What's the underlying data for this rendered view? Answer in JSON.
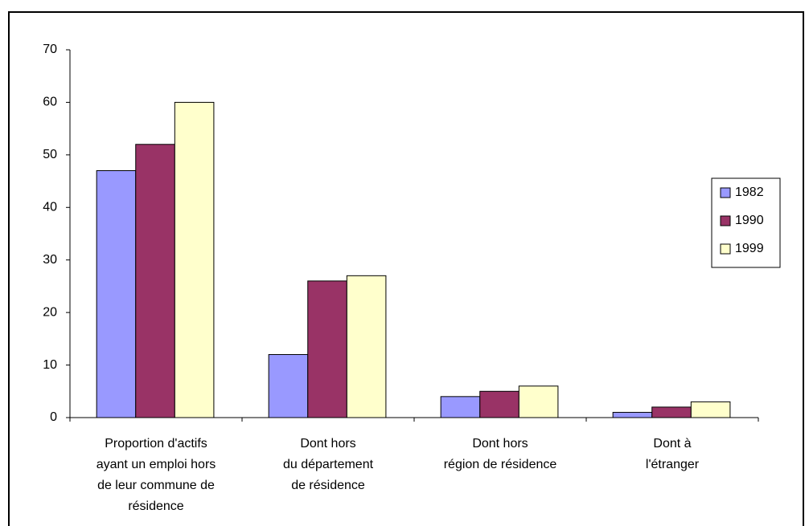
{
  "chart_data": {
    "type": "bar",
    "categories": [
      [
        "Proportion d'actifs",
        "ayant un emploi hors",
        "de leur commune de",
        "résidence"
      ],
      [
        "Dont hors",
        "du département",
        "de résidence"
      ],
      [
        "Dont hors",
        "région de résidence"
      ],
      [
        "Dont à",
        "l'étranger"
      ]
    ],
    "series": [
      {
        "name": "1982",
        "color": "#9999ff",
        "values": [
          47,
          12,
          4,
          1
        ]
      },
      {
        "name": "1990",
        "color": "#993366",
        "values": [
          52,
          26,
          5,
          2
        ]
      },
      {
        "name": "1999",
        "color": "#ffffcc",
        "values": [
          60,
          27,
          6,
          3
        ]
      }
    ],
    "ylim": [
      0,
      70
    ],
    "yticks": [
      0,
      10,
      20,
      30,
      40,
      50,
      60,
      70
    ],
    "grid": false,
    "legend": "right"
  }
}
